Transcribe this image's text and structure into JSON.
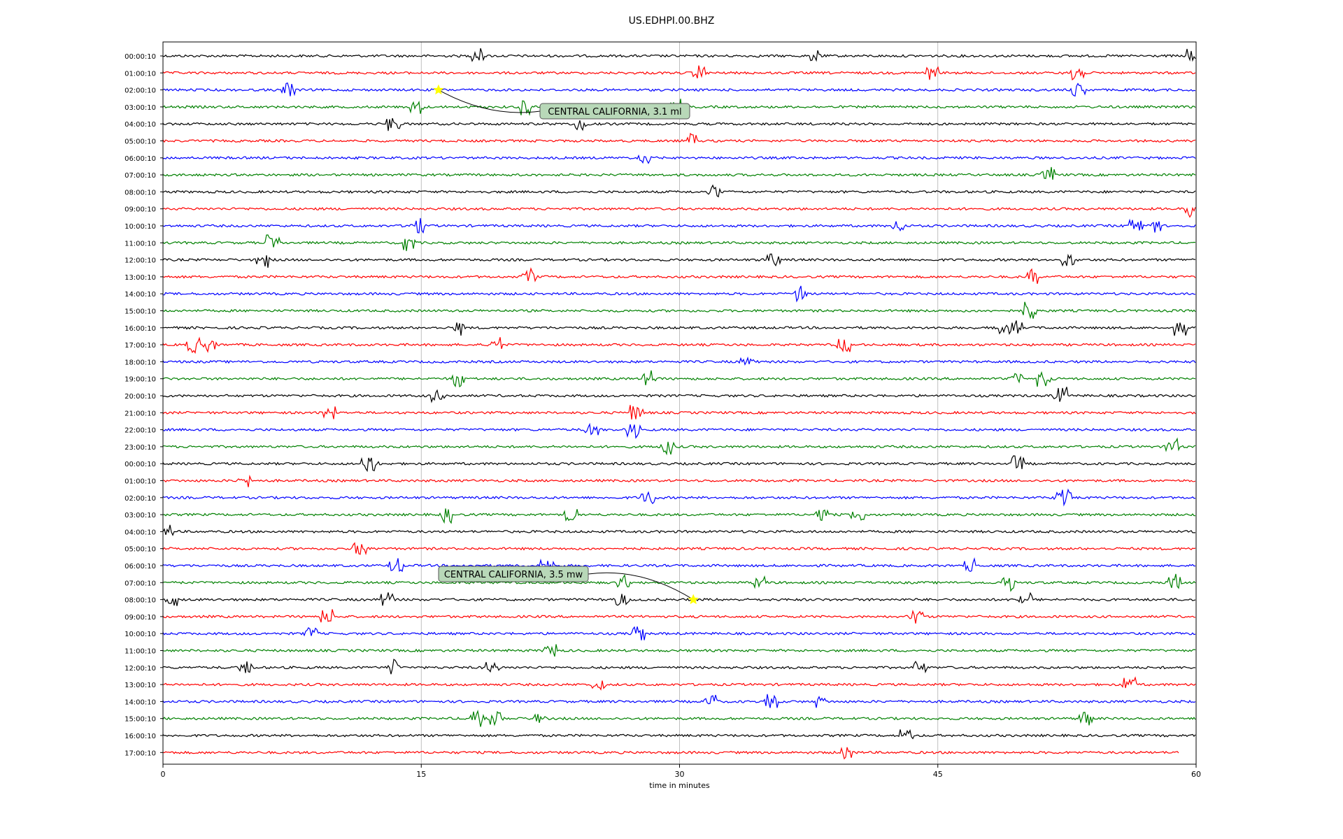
{
  "chart_data": {
    "type": "line",
    "title": "US.EDHPI.00.BHZ",
    "xlabel": "time in minutes",
    "ylabel": "",
    "xlim": [
      0,
      60
    ],
    "xticks": [
      0,
      15,
      30,
      45,
      60
    ],
    "grid": "vertical",
    "colors": [
      "#000000",
      "#ff0000",
      "#0000ff",
      "#008000"
    ],
    "rows": [
      "00:00:10",
      "01:00:10",
      "02:00:10",
      "03:00:10",
      "04:00:10",
      "05:00:10",
      "06:00:10",
      "07:00:10",
      "08:00:10",
      "09:00:10",
      "10:00:10",
      "11:00:10",
      "12:00:10",
      "13:00:10",
      "14:00:10",
      "15:00:10",
      "16:00:10",
      "17:00:10",
      "18:00:10",
      "19:00:10",
      "20:00:10",
      "21:00:10",
      "22:00:10",
      "23:00:10",
      "00:00:10",
      "01:00:10",
      "02:00:10",
      "03:00:10",
      "04:00:10",
      "05:00:10",
      "06:00:10",
      "07:00:10",
      "08:00:10",
      "09:00:10",
      "10:00:10",
      "11:00:10",
      "12:00:10",
      "13:00:10",
      "14:00:10",
      "15:00:10",
      "16:00:10",
      "17:00:10"
    ],
    "last_row_end_minute": 59.0,
    "annotations": [
      {
        "text": "CENTRAL CALIFORNIA, 3.1 ml",
        "row": 2,
        "minute": 16.0,
        "box_color": "#b8d8b8"
      },
      {
        "text": "CENTRAL CALIFORNIA, 3.5 mw",
        "row": 32,
        "minute": 30.8,
        "box_color": "#b8d8b8"
      }
    ],
    "event_marker_color": "#ffff00"
  }
}
